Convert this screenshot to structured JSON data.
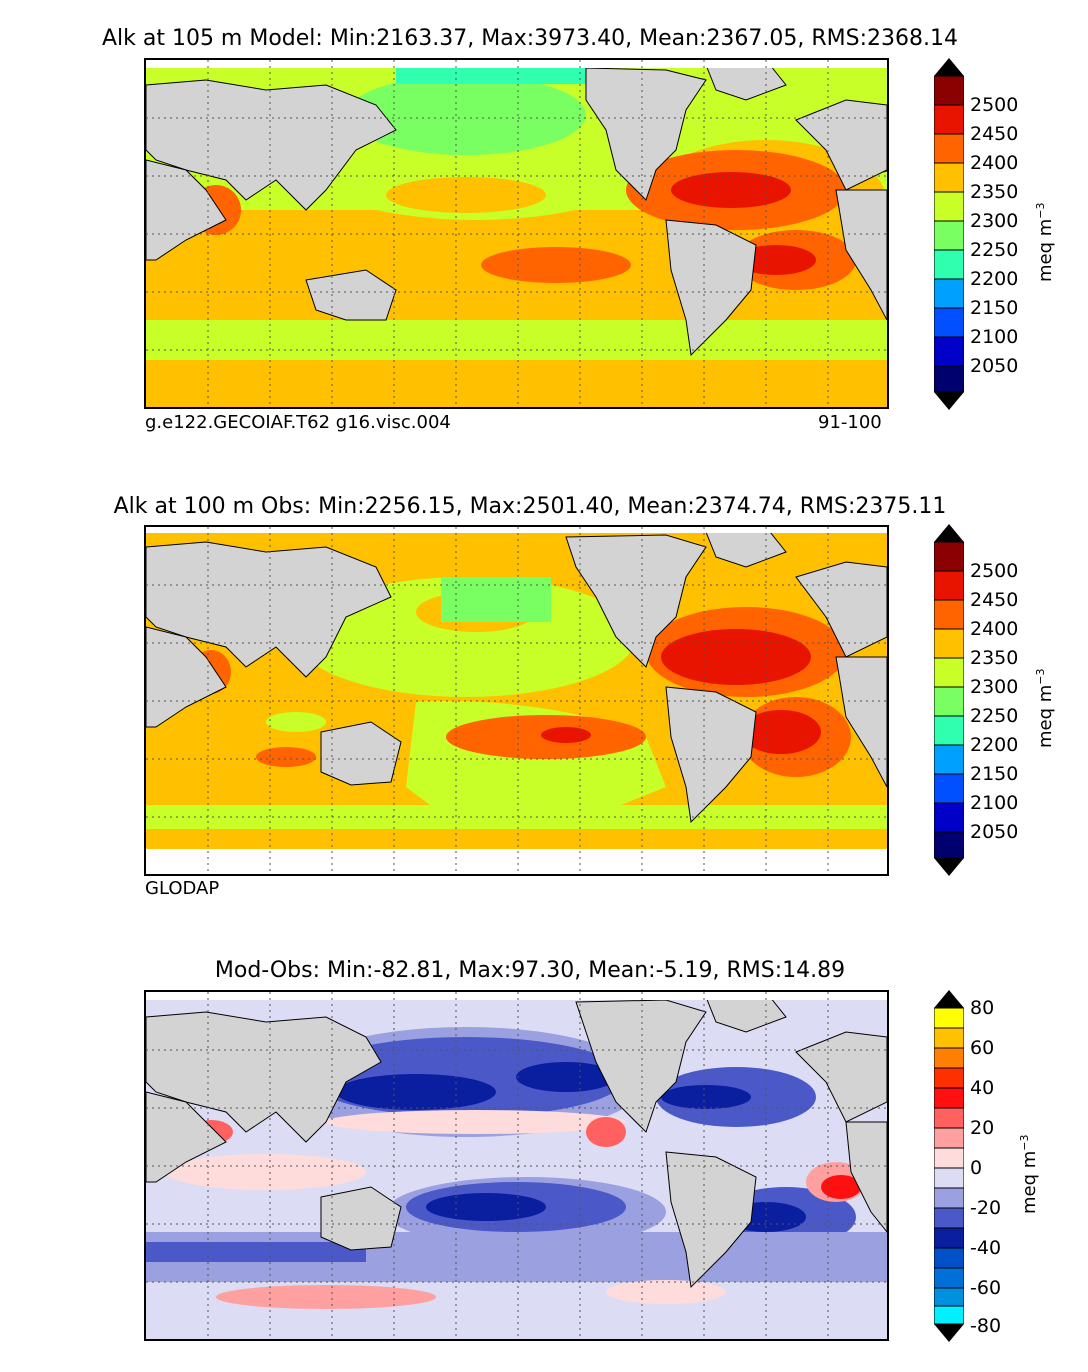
{
  "panels": [
    {
      "title": "Alk at 105 m Model: Min:2163.37, Max:3973.40, Mean:2367.05, RMS:2368.14",
      "caption_left": "g.e122.GECOIAF.T62 g16.visc.004",
      "caption_right": "91-100",
      "units": "meq m",
      "units_exp": "−3",
      "ticks": [
        "2500",
        "2450",
        "2400",
        "2350",
        "2300",
        "2250",
        "2200",
        "2150",
        "2100",
        "2050"
      ],
      "colors": {
        "levels": [
          "#00006e",
          "#0000c8",
          "#0050ff",
          "#00a0ff",
          "#00e8e0",
          "#30ffb0",
          "#7aff62",
          "#c8ff28",
          "#ffc000",
          "#ff6400",
          "#e81400",
          "#8b0000"
        ],
        "ocean_base": "#c8ff28",
        "land": "#d3d3d3"
      }
    },
    {
      "title": "Alk at 100 m Obs: Min:2256.15, Max:2501.40, Mean:2374.74, RMS:2375.11",
      "caption_left": "GLODAP",
      "caption_right": "",
      "units": "meq m",
      "units_exp": "−3",
      "ticks": [
        "2500",
        "2450",
        "2400",
        "2350",
        "2300",
        "2250",
        "2200",
        "2150",
        "2100",
        "2050"
      ],
      "colors": {
        "levels": [
          "#00006e",
          "#0000c8",
          "#0050ff",
          "#00a0ff",
          "#00e8e0",
          "#30ffb0",
          "#7aff62",
          "#c8ff28",
          "#ffc000",
          "#ff6400",
          "#e81400",
          "#8b0000"
        ],
        "ocean_base": "#ffc000",
        "land": "#d3d3d3"
      }
    },
    {
      "title": "Mod-Obs: Min:-82.81, Max:97.30, Mean:-5.19, RMS:14.89",
      "caption_left": "",
      "caption_right": "",
      "units": "meq m",
      "units_exp": "−3",
      "ticks": [
        "80",
        "60",
        "40",
        "20",
        "0",
        "-20",
        "-40",
        "-60",
        "-80"
      ],
      "colors": {
        "levels": [
          "#00f0ff",
          "#0090e0",
          "#0050c8",
          "#0a1ea0",
          "#4a58c8",
          "#9aa0e0",
          "#dcdcf4",
          "#ffdcdc",
          "#ffa0a0",
          "#ff6060",
          "#ff1010",
          "#ff8000",
          "#ffff00"
        ],
        "ocean_base": "#dcdcf4",
        "land": "#d3d3d3"
      }
    }
  ]
}
